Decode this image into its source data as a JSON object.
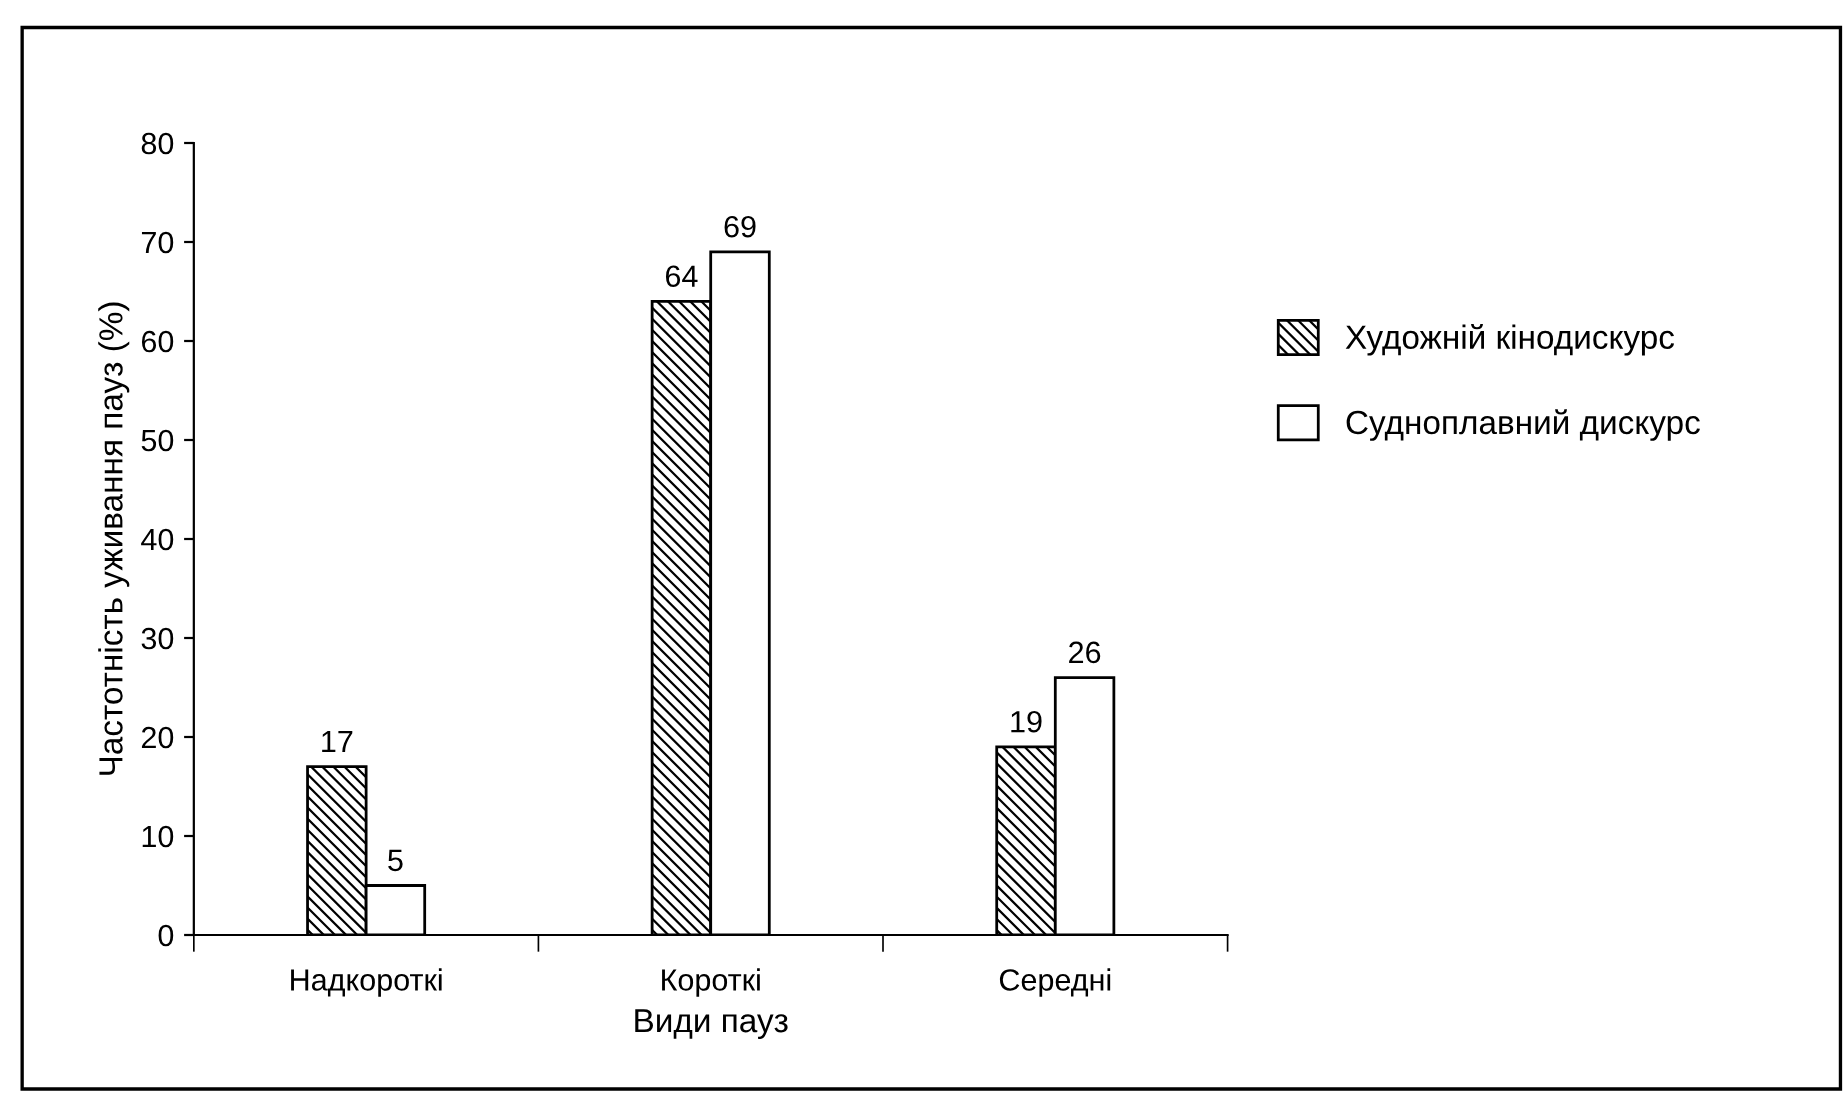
{
  "chart_data": {
    "type": "bar",
    "xlabel": "Види пауз",
    "ylabel": "Частотність уживання пауз (%)",
    "categories": [
      "Надкороткі",
      "Короткі",
      "Середні"
    ],
    "series": [
      {
        "name": "Художній кінодискурс",
        "color": "#000000",
        "values": [
          17,
          64,
          19
        ]
      },
      {
        "name": "Судноплавний дискурс",
        "color": "#ffffff",
        "values": [
          5,
          69,
          26
        ]
      }
    ],
    "ylim": [
      0,
      80
    ],
    "yticks": [
      0,
      10,
      20,
      30,
      40,
      50,
      60,
      70,
      80
    ],
    "data_labels": true,
    "grid": false,
    "legend": "right"
  }
}
